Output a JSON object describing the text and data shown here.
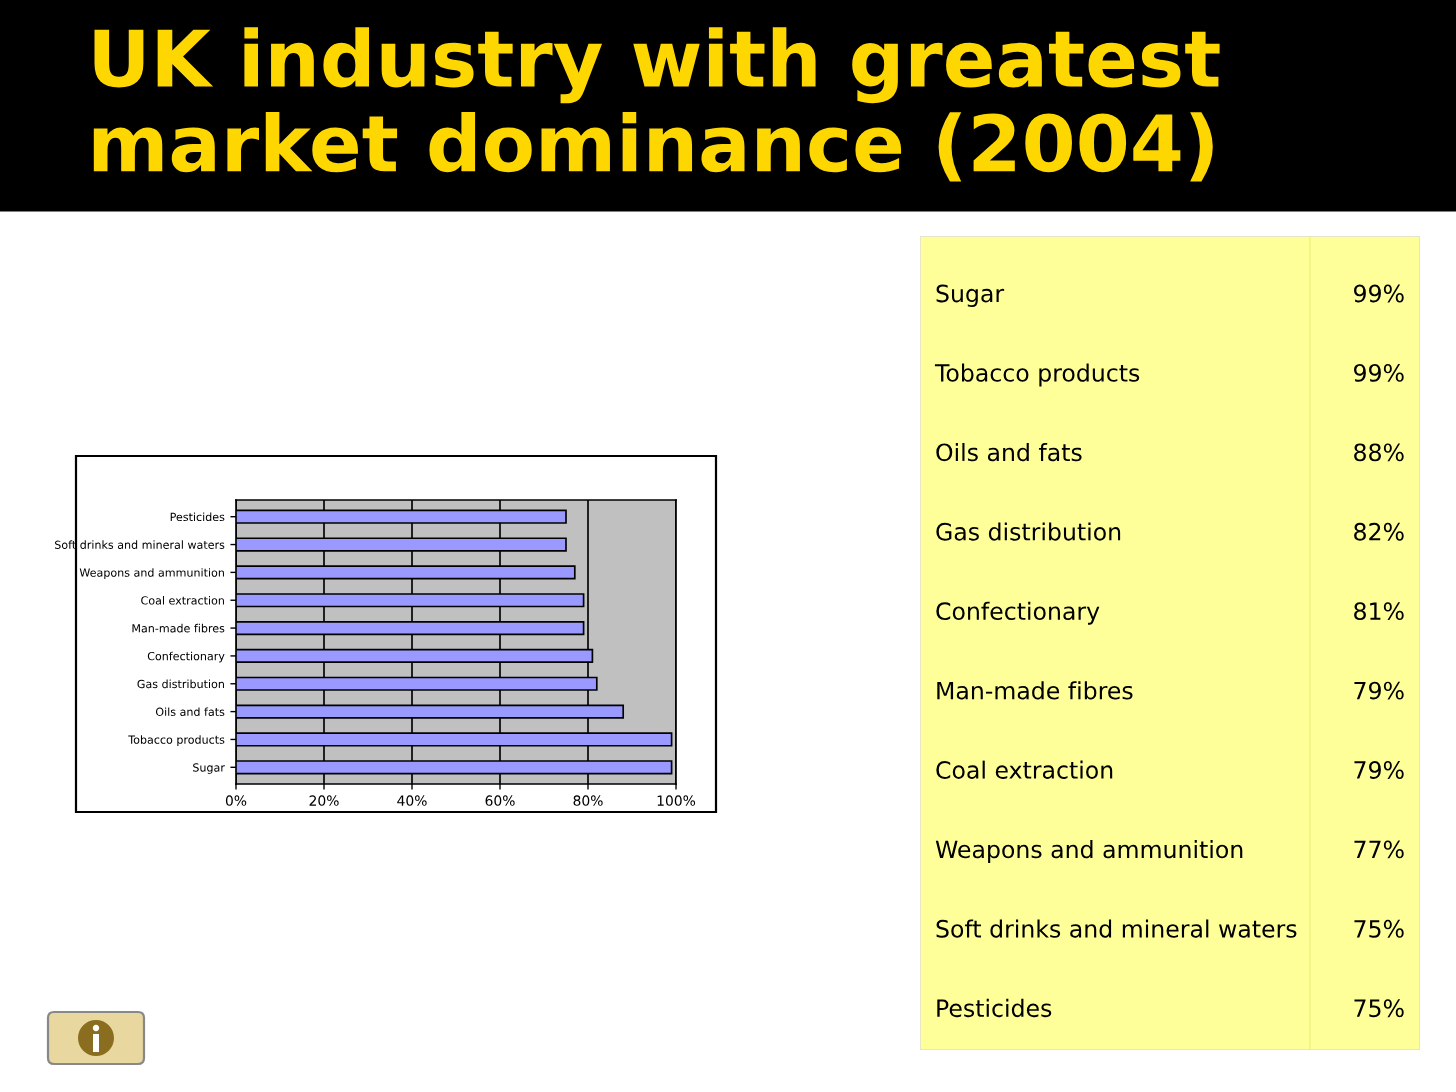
{
  "chart_data": [
    {
      "type": "bar",
      "orientation": "horizontal",
      "title": "UK industry with greatest market dominance (2004)",
      "categories": [
        "Pesticides",
        "Soft drinks and mineral waters",
        "Weapons and ammunition",
        "Coal extraction",
        "Man-made fibres",
        "Confectionary",
        "Gas distribution",
        "Oils and fats",
        "Tobacco products",
        "Sugar"
      ],
      "values": [
        75,
        75,
        77,
        79,
        79,
        81,
        82,
        88,
        99,
        99
      ],
      "color": "#9999ff",
      "xlim": [
        0,
        100
      ],
      "xticks": [
        {
          "value": 0,
          "label": "0%"
        },
        {
          "value": 20,
          "label": "20%"
        },
        {
          "value": 40,
          "label": "40%"
        },
        {
          "value": 60,
          "label": "60%"
        },
        {
          "value": 80,
          "label": "80%"
        },
        {
          "value": 100,
          "label": "100%"
        }
      ],
      "grid": "x"
    },
    {
      "type": "other",
      "annotations": [
        "Sugar",
        "99%",
        "Tobacco products",
        "99%",
        "Oils and fats",
        "88%",
        "Gas distribution",
        "82%",
        "Confectionary",
        "81%",
        "Man-made fibres",
        "79%",
        "Coal extraction",
        "79%",
        "Weapons and ammunition",
        "77%",
        "Soft drinks and mineral waters",
        "75%",
        "Pesticides",
        "75%"
      ]
    }
  ]
}
